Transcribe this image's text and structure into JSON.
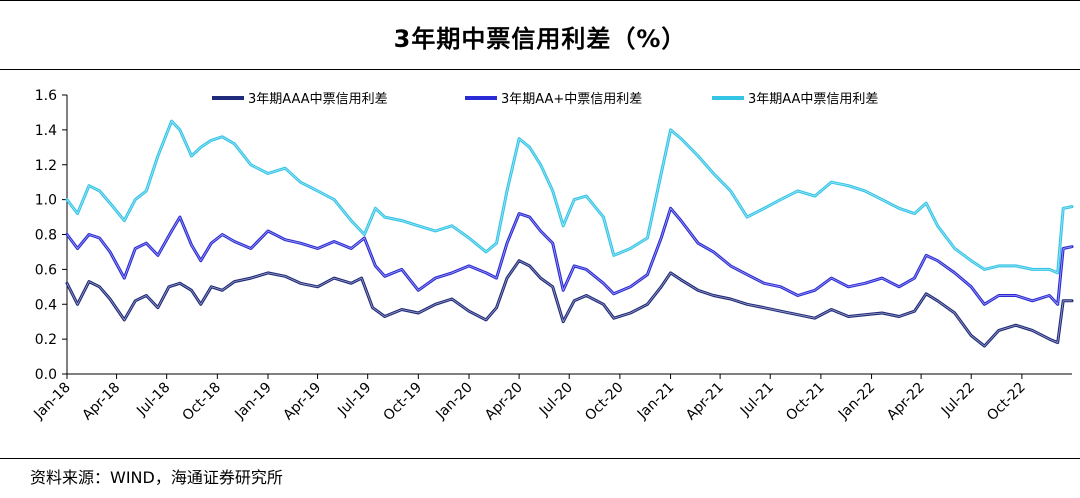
{
  "header": {
    "title": "3年期中票信用利差（%）"
  },
  "footer": {
    "source": "资料来源：WIND，海通证券研究所"
  },
  "chart_data": {
    "type": "line",
    "title": "3年期中票信用利差（%）",
    "xlabel": "",
    "ylabel": "",
    "ylim": [
      0.0,
      1.6
    ],
    "y_ticks": [
      "0.0",
      "0.2",
      "0.4",
      "0.6",
      "0.8",
      "1.0",
      "1.2",
      "1.4",
      "1.6"
    ],
    "x_range": [
      "2018-01-01",
      "2022-12-31"
    ],
    "x_ticks": [
      {
        "date": "2018-01-01",
        "label": "Jan-18"
      },
      {
        "date": "2018-04-01",
        "label": "Apr-18"
      },
      {
        "date": "2018-07-01",
        "label": "Jul-18"
      },
      {
        "date": "2018-10-01",
        "label": "Oct-18"
      },
      {
        "date": "2019-01-01",
        "label": "Jan-19"
      },
      {
        "date": "2019-04-01",
        "label": "Apr-19"
      },
      {
        "date": "2019-07-01",
        "label": "Jul-19"
      },
      {
        "date": "2019-10-01",
        "label": "Oct-19"
      },
      {
        "date": "2020-01-01",
        "label": "Jan-20"
      },
      {
        "date": "2020-04-01",
        "label": "Apr-20"
      },
      {
        "date": "2020-07-01",
        "label": "Jul-20"
      },
      {
        "date": "2020-10-01",
        "label": "Oct-20"
      },
      {
        "date": "2021-01-01",
        "label": "Jan-21"
      },
      {
        "date": "2021-04-01",
        "label": "Apr-21"
      },
      {
        "date": "2021-07-01",
        "label": "Jul-21"
      },
      {
        "date": "2021-10-01",
        "label": "Oct-21"
      },
      {
        "date": "2022-01-01",
        "label": "Jan-22"
      },
      {
        "date": "2022-04-01",
        "label": "Apr-22"
      },
      {
        "date": "2022-07-01",
        "label": "Jul-22"
      },
      {
        "date": "2022-10-01",
        "label": "Oct-22"
      }
    ],
    "grid": false,
    "legend_position": "top",
    "series": [
      {
        "name": "3年期AAA中票信用利差",
        "color": "#1f2a7a",
        "points": [
          [
            "2018-01-01",
            0.52
          ],
          [
            "2018-01-20",
            0.4
          ],
          [
            "2018-02-10",
            0.53
          ],
          [
            "2018-03-01",
            0.5
          ],
          [
            "2018-03-20",
            0.43
          ],
          [
            "2018-04-15",
            0.31
          ],
          [
            "2018-05-05",
            0.42
          ],
          [
            "2018-05-25",
            0.45
          ],
          [
            "2018-06-15",
            0.38
          ],
          [
            "2018-07-05",
            0.5
          ],
          [
            "2018-07-25",
            0.52
          ],
          [
            "2018-08-15",
            0.48
          ],
          [
            "2018-09-01",
            0.4
          ],
          [
            "2018-09-20",
            0.5
          ],
          [
            "2018-10-10",
            0.48
          ],
          [
            "2018-11-01",
            0.53
          ],
          [
            "2018-12-01",
            0.55
          ],
          [
            "2019-01-01",
            0.58
          ],
          [
            "2019-02-01",
            0.56
          ],
          [
            "2019-03-01",
            0.52
          ],
          [
            "2019-04-01",
            0.5
          ],
          [
            "2019-05-01",
            0.55
          ],
          [
            "2019-06-01",
            0.52
          ],
          [
            "2019-06-20",
            0.55
          ],
          [
            "2019-07-10",
            0.38
          ],
          [
            "2019-08-01",
            0.33
          ],
          [
            "2019-09-01",
            0.37
          ],
          [
            "2019-10-01",
            0.35
          ],
          [
            "2019-11-01",
            0.4
          ],
          [
            "2019-12-01",
            0.43
          ],
          [
            "2020-01-01",
            0.36
          ],
          [
            "2020-02-01",
            0.31
          ],
          [
            "2020-02-20",
            0.38
          ],
          [
            "2020-03-10",
            0.55
          ],
          [
            "2020-04-01",
            0.65
          ],
          [
            "2020-04-20",
            0.62
          ],
          [
            "2020-05-10",
            0.55
          ],
          [
            "2020-06-01",
            0.5
          ],
          [
            "2020-06-20",
            0.3
          ],
          [
            "2020-07-10",
            0.42
          ],
          [
            "2020-08-01",
            0.45
          ],
          [
            "2020-09-01",
            0.4
          ],
          [
            "2020-09-20",
            0.32
          ],
          [
            "2020-10-20",
            0.35
          ],
          [
            "2020-11-20",
            0.4
          ],
          [
            "2020-12-15",
            0.5
          ],
          [
            "2021-01-01",
            0.58
          ],
          [
            "2021-01-20",
            0.54
          ],
          [
            "2021-02-20",
            0.48
          ],
          [
            "2021-03-20",
            0.45
          ],
          [
            "2021-04-20",
            0.43
          ],
          [
            "2021-05-20",
            0.4
          ],
          [
            "2021-06-20",
            0.38
          ],
          [
            "2021-07-20",
            0.36
          ],
          [
            "2021-08-20",
            0.34
          ],
          [
            "2021-09-20",
            0.32
          ],
          [
            "2021-10-20",
            0.37
          ],
          [
            "2021-11-20",
            0.33
          ],
          [
            "2021-12-20",
            0.34
          ],
          [
            "2022-01-20",
            0.35
          ],
          [
            "2022-02-20",
            0.33
          ],
          [
            "2022-03-20",
            0.36
          ],
          [
            "2022-04-10",
            0.46
          ],
          [
            "2022-05-01",
            0.42
          ],
          [
            "2022-06-01",
            0.35
          ],
          [
            "2022-07-01",
            0.22
          ],
          [
            "2022-07-25",
            0.16
          ],
          [
            "2022-08-20",
            0.25
          ],
          [
            "2022-09-20",
            0.28
          ],
          [
            "2022-10-20",
            0.25
          ],
          [
            "2022-11-20",
            0.2
          ],
          [
            "2022-12-05",
            0.18
          ],
          [
            "2022-12-15",
            0.42
          ],
          [
            "2022-12-31",
            0.42
          ]
        ]
      },
      {
        "name": "3年期AA+中票信用利差",
        "color": "#2b2bd6",
        "points": [
          [
            "2018-01-01",
            0.8
          ],
          [
            "2018-01-20",
            0.72
          ],
          [
            "2018-02-10",
            0.8
          ],
          [
            "2018-03-01",
            0.78
          ],
          [
            "2018-03-20",
            0.7
          ],
          [
            "2018-04-15",
            0.55
          ],
          [
            "2018-05-05",
            0.72
          ],
          [
            "2018-05-25",
            0.75
          ],
          [
            "2018-06-15",
            0.68
          ],
          [
            "2018-07-10",
            0.82
          ],
          [
            "2018-07-25",
            0.9
          ],
          [
            "2018-08-15",
            0.74
          ],
          [
            "2018-09-01",
            0.65
          ],
          [
            "2018-09-20",
            0.75
          ],
          [
            "2018-10-10",
            0.8
          ],
          [
            "2018-11-01",
            0.76
          ],
          [
            "2018-12-01",
            0.72
          ],
          [
            "2019-01-01",
            0.82
          ],
          [
            "2019-02-01",
            0.77
          ],
          [
            "2019-03-01",
            0.75
          ],
          [
            "2019-04-01",
            0.72
          ],
          [
            "2019-05-01",
            0.76
          ],
          [
            "2019-06-01",
            0.72
          ],
          [
            "2019-06-25",
            0.78
          ],
          [
            "2019-07-15",
            0.62
          ],
          [
            "2019-08-01",
            0.56
          ],
          [
            "2019-09-01",
            0.6
          ],
          [
            "2019-10-01",
            0.48
          ],
          [
            "2019-11-01",
            0.55
          ],
          [
            "2019-12-01",
            0.58
          ],
          [
            "2020-01-01",
            0.62
          ],
          [
            "2020-02-01",
            0.58
          ],
          [
            "2020-02-20",
            0.55
          ],
          [
            "2020-03-10",
            0.75
          ],
          [
            "2020-04-01",
            0.92
          ],
          [
            "2020-04-20",
            0.9
          ],
          [
            "2020-05-10",
            0.82
          ],
          [
            "2020-06-01",
            0.75
          ],
          [
            "2020-06-20",
            0.48
          ],
          [
            "2020-07-10",
            0.62
          ],
          [
            "2020-08-01",
            0.6
          ],
          [
            "2020-09-01",
            0.52
          ],
          [
            "2020-09-20",
            0.46
          ],
          [
            "2020-10-20",
            0.5
          ],
          [
            "2020-11-20",
            0.57
          ],
          [
            "2020-12-15",
            0.78
          ],
          [
            "2021-01-01",
            0.95
          ],
          [
            "2021-01-20",
            0.88
          ],
          [
            "2021-02-20",
            0.75
          ],
          [
            "2021-03-20",
            0.7
          ],
          [
            "2021-04-20",
            0.62
          ],
          [
            "2021-05-20",
            0.57
          ],
          [
            "2021-06-20",
            0.52
          ],
          [
            "2021-07-20",
            0.5
          ],
          [
            "2021-08-20",
            0.45
          ],
          [
            "2021-09-20",
            0.48
          ],
          [
            "2021-10-20",
            0.55
          ],
          [
            "2021-11-20",
            0.5
          ],
          [
            "2021-12-20",
            0.52
          ],
          [
            "2022-01-20",
            0.55
          ],
          [
            "2022-02-20",
            0.5
          ],
          [
            "2022-03-20",
            0.55
          ],
          [
            "2022-04-10",
            0.68
          ],
          [
            "2022-05-01",
            0.65
          ],
          [
            "2022-06-01",
            0.58
          ],
          [
            "2022-07-01",
            0.5
          ],
          [
            "2022-07-25",
            0.4
          ],
          [
            "2022-08-20",
            0.45
          ],
          [
            "2022-09-20",
            0.45
          ],
          [
            "2022-10-20",
            0.42
          ],
          [
            "2022-11-20",
            0.45
          ],
          [
            "2022-12-05",
            0.4
          ],
          [
            "2022-12-15",
            0.72
          ],
          [
            "2022-12-31",
            0.73
          ]
        ]
      },
      {
        "name": "3年期AA中票信用利差",
        "color": "#33c4e6",
        "points": [
          [
            "2018-01-01",
            1.0
          ],
          [
            "2018-01-20",
            0.92
          ],
          [
            "2018-02-10",
            1.08
          ],
          [
            "2018-03-01",
            1.05
          ],
          [
            "2018-03-20",
            0.98
          ],
          [
            "2018-04-15",
            0.88
          ],
          [
            "2018-05-05",
            1.0
          ],
          [
            "2018-05-25",
            1.05
          ],
          [
            "2018-06-15",
            1.25
          ],
          [
            "2018-07-10",
            1.45
          ],
          [
            "2018-07-25",
            1.4
          ],
          [
            "2018-08-15",
            1.25
          ],
          [
            "2018-09-01",
            1.3
          ],
          [
            "2018-09-20",
            1.34
          ],
          [
            "2018-10-10",
            1.36
          ],
          [
            "2018-11-01",
            1.32
          ],
          [
            "2018-12-01",
            1.2
          ],
          [
            "2019-01-01",
            1.15
          ],
          [
            "2019-02-01",
            1.18
          ],
          [
            "2019-03-01",
            1.1
          ],
          [
            "2019-04-01",
            1.05
          ],
          [
            "2019-05-01",
            1.0
          ],
          [
            "2019-06-01",
            0.88
          ],
          [
            "2019-06-25",
            0.8
          ],
          [
            "2019-07-15",
            0.95
          ],
          [
            "2019-08-01",
            0.9
          ],
          [
            "2019-09-01",
            0.88
          ],
          [
            "2019-10-01",
            0.85
          ],
          [
            "2019-11-01",
            0.82
          ],
          [
            "2019-12-01",
            0.85
          ],
          [
            "2020-01-01",
            0.78
          ],
          [
            "2020-02-01",
            0.7
          ],
          [
            "2020-02-20",
            0.75
          ],
          [
            "2020-03-10",
            1.05
          ],
          [
            "2020-04-01",
            1.35
          ],
          [
            "2020-04-20",
            1.3
          ],
          [
            "2020-05-10",
            1.2
          ],
          [
            "2020-06-01",
            1.05
          ],
          [
            "2020-06-20",
            0.85
          ],
          [
            "2020-07-10",
            1.0
          ],
          [
            "2020-08-01",
            1.02
          ],
          [
            "2020-09-01",
            0.9
          ],
          [
            "2020-09-20",
            0.68
          ],
          [
            "2020-10-20",
            0.72
          ],
          [
            "2020-11-20",
            0.78
          ],
          [
            "2020-12-15",
            1.15
          ],
          [
            "2021-01-01",
            1.4
          ],
          [
            "2021-01-20",
            1.35
          ],
          [
            "2021-02-20",
            1.25
          ],
          [
            "2021-03-20",
            1.15
          ],
          [
            "2021-04-20",
            1.05
          ],
          [
            "2021-05-20",
            0.9
          ],
          [
            "2021-06-20",
            0.95
          ],
          [
            "2021-07-20",
            1.0
          ],
          [
            "2021-08-20",
            1.05
          ],
          [
            "2021-09-20",
            1.02
          ],
          [
            "2021-10-20",
            1.1
          ],
          [
            "2021-11-20",
            1.08
          ],
          [
            "2021-12-20",
            1.05
          ],
          [
            "2022-01-20",
            1.0
          ],
          [
            "2022-02-20",
            0.95
          ],
          [
            "2022-03-20",
            0.92
          ],
          [
            "2022-04-10",
            0.98
          ],
          [
            "2022-05-01",
            0.85
          ],
          [
            "2022-06-01",
            0.72
          ],
          [
            "2022-07-01",
            0.65
          ],
          [
            "2022-07-25",
            0.6
          ],
          [
            "2022-08-20",
            0.62
          ],
          [
            "2022-09-20",
            0.62
          ],
          [
            "2022-10-20",
            0.6
          ],
          [
            "2022-11-20",
            0.6
          ],
          [
            "2022-12-05",
            0.58
          ],
          [
            "2022-12-15",
            0.95
          ],
          [
            "2022-12-31",
            0.96
          ]
        ]
      }
    ]
  }
}
